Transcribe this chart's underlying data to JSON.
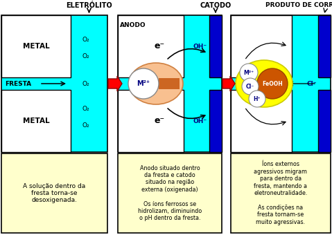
{
  "bg_color": "#ffffff",
  "cyan": "#00FFFF",
  "blue": "#0000CD",
  "white": "#FFFFFF",
  "black": "#000000",
  "yellow_bg": "#FFFFCC",
  "text_panel1": "A solução dentro da\nfresta torna-se\ndesoxigenada.",
  "text_panel2": "Anodo situado dentro\nda fresta e catodo\nsituado na região\nexterna (oxigenada)\n\nOs íons ferrosos se\nhidrolizam, diminuindo\no pH dentro da fresta.",
  "text_panel3": "Íons externos\nagressivos migram\npara dentro da\nfresta, mantendo a\neletroneutralidade.\n\nAs condições na\nfresta tornam-se\nmuito agressivas.",
  "label_eletrolito": "ELETRÓLITO",
  "label_catodo": "CATODO",
  "label_produto": "PRODUTO DE CORROSÃO",
  "label_anodo": "ANODO",
  "label_metal1": "METAL",
  "label_metal2": "METAL",
  "label_fresta": "FRESTA"
}
